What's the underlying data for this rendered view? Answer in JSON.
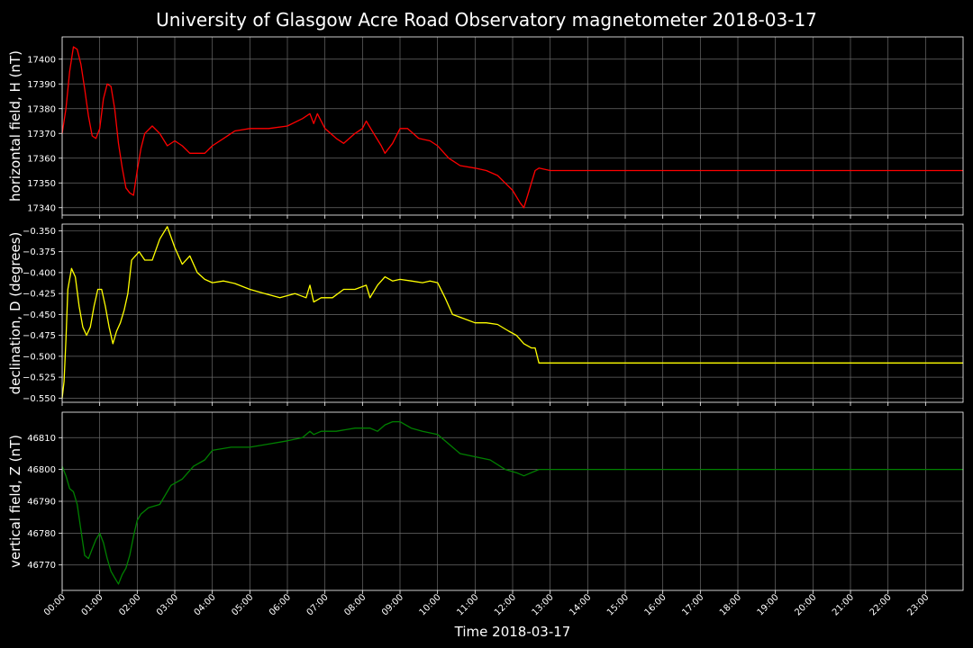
{
  "chart_data": {
    "type": "line",
    "title": "University of Glasgow Acre Road Observatory magnetometer 2018-03-17",
    "xlabel": "Time 2018-03-17",
    "x_unit": "hours since 00:00",
    "xlim": [
      0,
      24
    ],
    "x_ticks": [
      "00:00",
      "01:00",
      "02:00",
      "03:00",
      "04:00",
      "05:00",
      "06:00",
      "07:00",
      "08:00",
      "09:00",
      "10:00",
      "11:00",
      "12:00",
      "13:00",
      "14:00",
      "15:00",
      "16:00",
      "17:00",
      "18:00",
      "19:00",
      "20:00",
      "21:00",
      "22:00",
      "23:00"
    ],
    "grid": true,
    "panels": [
      {
        "id": "H",
        "ylabel": "horizontal field, H (nT)",
        "color": "#ff0000",
        "ylim": [
          17337,
          17409
        ],
        "yticks": [
          17340,
          17350,
          17360,
          17370,
          17380,
          17390,
          17400
        ],
        "ytick_labels": [
          "17340",
          "17350",
          "17360",
          "17370",
          "17380",
          "17390",
          "17400"
        ],
        "x": [
          0,
          0.1,
          0.2,
          0.3,
          0.4,
          0.5,
          0.6,
          0.7,
          0.8,
          0.9,
          1.0,
          1.1,
          1.2,
          1.3,
          1.4,
          1.5,
          1.6,
          1.7,
          1.8,
          1.9,
          2.0,
          2.1,
          2.2,
          2.4,
          2.6,
          2.8,
          3.0,
          3.2,
          3.4,
          3.6,
          3.8,
          4.0,
          4.3,
          4.6,
          5.0,
          5.5,
          6.0,
          6.4,
          6.6,
          6.7,
          6.8,
          7.0,
          7.3,
          7.5,
          7.8,
          8.0,
          8.1,
          8.3,
          8.5,
          8.6,
          8.8,
          9.0,
          9.2,
          9.5,
          9.8,
          10.0,
          10.3,
          10.6,
          11.0,
          11.3,
          11.6,
          11.8,
          12.0,
          12.2,
          12.3,
          12.4,
          12.5,
          12.6,
          12.7,
          13.0,
          16.0,
          20.0,
          24.0
        ],
        "y": [
          17370,
          17380,
          17395,
          17405,
          17404,
          17398,
          17388,
          17377,
          17369,
          17368,
          17372,
          17384,
          17390,
          17389,
          17380,
          17366,
          17356,
          17348,
          17346,
          17345,
          17355,
          17364,
          17370,
          17373,
          17370,
          17365,
          17367,
          17365,
          17362,
          17362,
          17362,
          17365,
          17368,
          17371,
          17372,
          17372,
          17373,
          17376,
          17378,
          17374,
          17378,
          17372,
          17368,
          17366,
          17370,
          17372,
          17375,
          17370,
          17365,
          17362,
          17366,
          17372,
          17372,
          17368,
          17367,
          17365,
          17360,
          17357,
          17356,
          17355,
          17353,
          17350,
          17347,
          17342,
          17340,
          17345,
          17350,
          17355,
          17356,
          17355,
          17355,
          17355,
          17355
        ]
      },
      {
        "id": "D",
        "ylabel": "declination, D (degrees)",
        "color": "#ffff00",
        "ylim": [
          -0.555,
          -0.342
        ],
        "yticks": [
          -0.55,
          -0.525,
          -0.5,
          -0.475,
          -0.45,
          -0.425,
          -0.4,
          -0.375,
          -0.35
        ],
        "ytick_labels": [
          "−0.550",
          "−0.525",
          "−0.500",
          "−0.475",
          "−0.450",
          "−0.425",
          "−0.400",
          "−0.375",
          "−0.350"
        ],
        "x": [
          0,
          0.05,
          0.1,
          0.15,
          0.25,
          0.35,
          0.45,
          0.55,
          0.65,
          0.75,
          0.85,
          0.95,
          1.05,
          1.15,
          1.25,
          1.35,
          1.45,
          1.55,
          1.65,
          1.75,
          1.85,
          1.95,
          2.05,
          2.2,
          2.4,
          2.6,
          2.8,
          3.0,
          3.2,
          3.4,
          3.6,
          3.8,
          4.0,
          4.3,
          4.6,
          5.0,
          5.4,
          5.8,
          6.2,
          6.5,
          6.6,
          6.7,
          6.9,
          7.2,
          7.5,
          7.8,
          8.1,
          8.2,
          8.4,
          8.6,
          8.8,
          9.0,
          9.3,
          9.6,
          9.8,
          10.0,
          10.2,
          10.4,
          10.7,
          11.0,
          11.3,
          11.6,
          11.9,
          12.1,
          12.3,
          12.5,
          12.6,
          12.7,
          13.0,
          16.0,
          20.0,
          24.0
        ],
        "y": [
          -0.55,
          -0.53,
          -0.48,
          -0.42,
          -0.395,
          -0.405,
          -0.44,
          -0.465,
          -0.475,
          -0.465,
          -0.44,
          -0.42,
          -0.42,
          -0.44,
          -0.465,
          -0.485,
          -0.47,
          -0.46,
          -0.445,
          -0.425,
          -0.385,
          -0.38,
          -0.375,
          -0.385,
          -0.385,
          -0.36,
          -0.345,
          -0.37,
          -0.39,
          -0.38,
          -0.4,
          -0.408,
          -0.412,
          -0.41,
          -0.413,
          -0.42,
          -0.425,
          -0.43,
          -0.425,
          -0.43,
          -0.415,
          -0.435,
          -0.43,
          -0.43,
          -0.42,
          -0.42,
          -0.415,
          -0.43,
          -0.415,
          -0.405,
          -0.41,
          -0.408,
          -0.41,
          -0.412,
          -0.41,
          -0.412,
          -0.43,
          -0.45,
          -0.455,
          -0.46,
          -0.46,
          -0.462,
          -0.47,
          -0.475,
          -0.485,
          -0.49,
          -0.49,
          -0.508,
          -0.508,
          -0.508,
          -0.508,
          -0.508
        ]
      },
      {
        "id": "Z",
        "ylabel": "vertical field, Z (nT)",
        "color": "#008000",
        "ylim": [
          46762,
          46818
        ],
        "yticks": [
          46770,
          46780,
          46790,
          46800,
          46810
        ],
        "ytick_labels": [
          "46770",
          "46780",
          "46790",
          "46800",
          "46810"
        ],
        "x": [
          0,
          0.1,
          0.2,
          0.3,
          0.4,
          0.5,
          0.6,
          0.7,
          0.8,
          0.9,
          1.0,
          1.1,
          1.2,
          1.3,
          1.4,
          1.5,
          1.6,
          1.7,
          1.8,
          1.9,
          2.0,
          2.1,
          2.3,
          2.6,
          2.9,
          3.2,
          3.5,
          3.8,
          4.0,
          4.5,
          5.0,
          5.5,
          6.0,
          6.4,
          6.6,
          6.7,
          6.9,
          7.3,
          7.8,
          8.2,
          8.4,
          8.6,
          8.8,
          9.0,
          9.3,
          9.6,
          10.0,
          10.3,
          10.6,
          11.0,
          11.4,
          11.8,
          12.1,
          12.3,
          12.5,
          12.7,
          13.0,
          16.0,
          20.0,
          24.0
        ],
        "y": [
          46801,
          46798,
          46794,
          46793,
          46789,
          46781,
          46773,
          46772,
          46775,
          46778,
          46780,
          46777,
          46772,
          46768,
          46766,
          46764,
          46767,
          46769,
          46773,
          46779,
          46784,
          46786,
          46788,
          46789,
          46795,
          46797,
          46801,
          46803,
          46806,
          46807,
          46807,
          46808,
          46809,
          46810,
          46812,
          46811,
          46812,
          46812,
          46813,
          46813,
          46812,
          46814,
          46815,
          46815,
          46813,
          46812,
          46811,
          46808,
          46805,
          46804,
          46803,
          46800,
          46799,
          46798,
          46799,
          46800,
          46800,
          46800,
          46800,
          46800
        ]
      }
    ]
  }
}
